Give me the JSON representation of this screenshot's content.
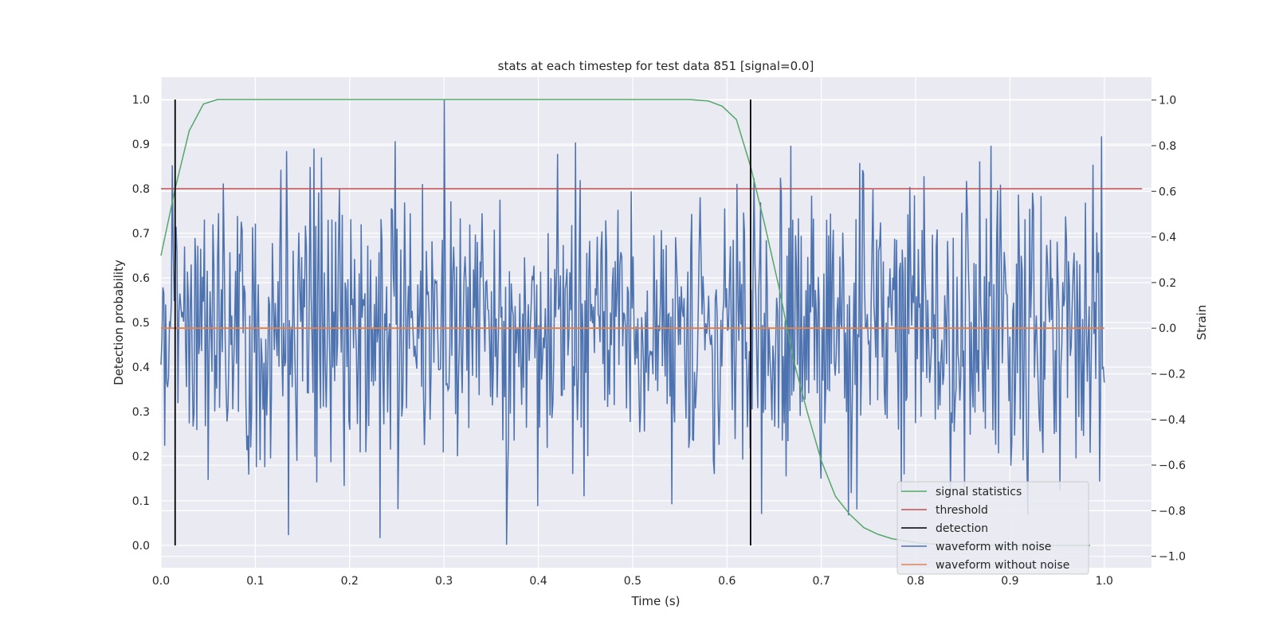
{
  "chart_data": {
    "type": "line",
    "title": "stats at each timestep for test data 851 [signal=0.0]",
    "xlabel": "Time (s)",
    "ylabel": "Detection probability",
    "y2label": "Strain",
    "xlim": [
      0.0,
      1.05
    ],
    "ylim": [
      -0.05,
      1.05
    ],
    "y2lim": [
      -1.05,
      1.1
    ],
    "xticks": [
      "0.0",
      "0.1",
      "0.2",
      "0.3",
      "0.4",
      "0.5",
      "0.6",
      "0.7",
      "0.8",
      "0.9",
      "1.0"
    ],
    "yticks": [
      "0.0",
      "0.1",
      "0.2",
      "0.3",
      "0.4",
      "0.5",
      "0.6",
      "0.7",
      "0.8",
      "0.9",
      "1.0"
    ],
    "y2ticks": [
      "−1.0",
      "−0.8",
      "−0.6",
      "−0.4",
      "−0.2",
      "0.0",
      "0.2",
      "0.4",
      "0.6",
      "0.8",
      "1.0"
    ],
    "grid": true,
    "legend_position": "lower-right",
    "series": [
      {
        "name": "signal statistics",
        "axis": "left",
        "color": "#55a868",
        "x": [
          0.0,
          0.015,
          0.03,
          0.045,
          0.06,
          0.075,
          0.1,
          0.2,
          0.3,
          0.4,
          0.5,
          0.56,
          0.58,
          0.595,
          0.61,
          0.625,
          0.64,
          0.655,
          0.67,
          0.685,
          0.7,
          0.715,
          0.73,
          0.745,
          0.76,
          0.775,
          0.79,
          0.805,
          0.82,
          0.85,
          0.9,
          0.95,
          0.985
        ],
        "y": [
          0.65,
          0.8,
          0.93,
          0.99,
          1.0,
          1.0,
          1.0,
          1.0,
          1.0,
          1.0,
          1.0,
          1.0,
          0.997,
          0.985,
          0.955,
          0.85,
          0.72,
          0.58,
          0.42,
          0.3,
          0.19,
          0.11,
          0.07,
          0.04,
          0.025,
          0.015,
          0.01,
          0.005,
          0.003,
          0.001,
          0.0,
          0.0,
          0.0
        ]
      },
      {
        "name": "threshold",
        "axis": "left",
        "color": "#c44e52",
        "x": [
          0.0,
          1.04
        ],
        "y": [
          0.8,
          0.8
        ]
      },
      {
        "name": "detection",
        "axis": "left",
        "color": "#000000",
        "segments": [
          {
            "x": 0.015,
            "y": [
              0.0,
              1.0
            ]
          },
          {
            "x": 0.625,
            "y": [
              0.0,
              1.0
            ]
          }
        ]
      },
      {
        "name": "waveform with noise",
        "axis": "right",
        "color": "#4c72b0",
        "x_range": [
          0.0,
          1.0
        ],
        "n_points": 1000,
        "y_range": [
          -0.95,
          1.0
        ],
        "peaks": [
          {
            "x": 0.3,
            "y": 1.0
          },
          {
            "x": 0.366,
            "y": -0.95
          },
          {
            "x": 0.232,
            "y": -0.92
          },
          {
            "x": 0.668,
            "y": 0.8
          },
          {
            "x": 0.88,
            "y": 0.8
          }
        ]
      },
      {
        "name": "waveform without noise",
        "axis": "right",
        "color": "#dd8452",
        "x": [
          0.0,
          1.0
        ],
        "y": [
          0.0,
          0.0
        ]
      }
    ]
  }
}
